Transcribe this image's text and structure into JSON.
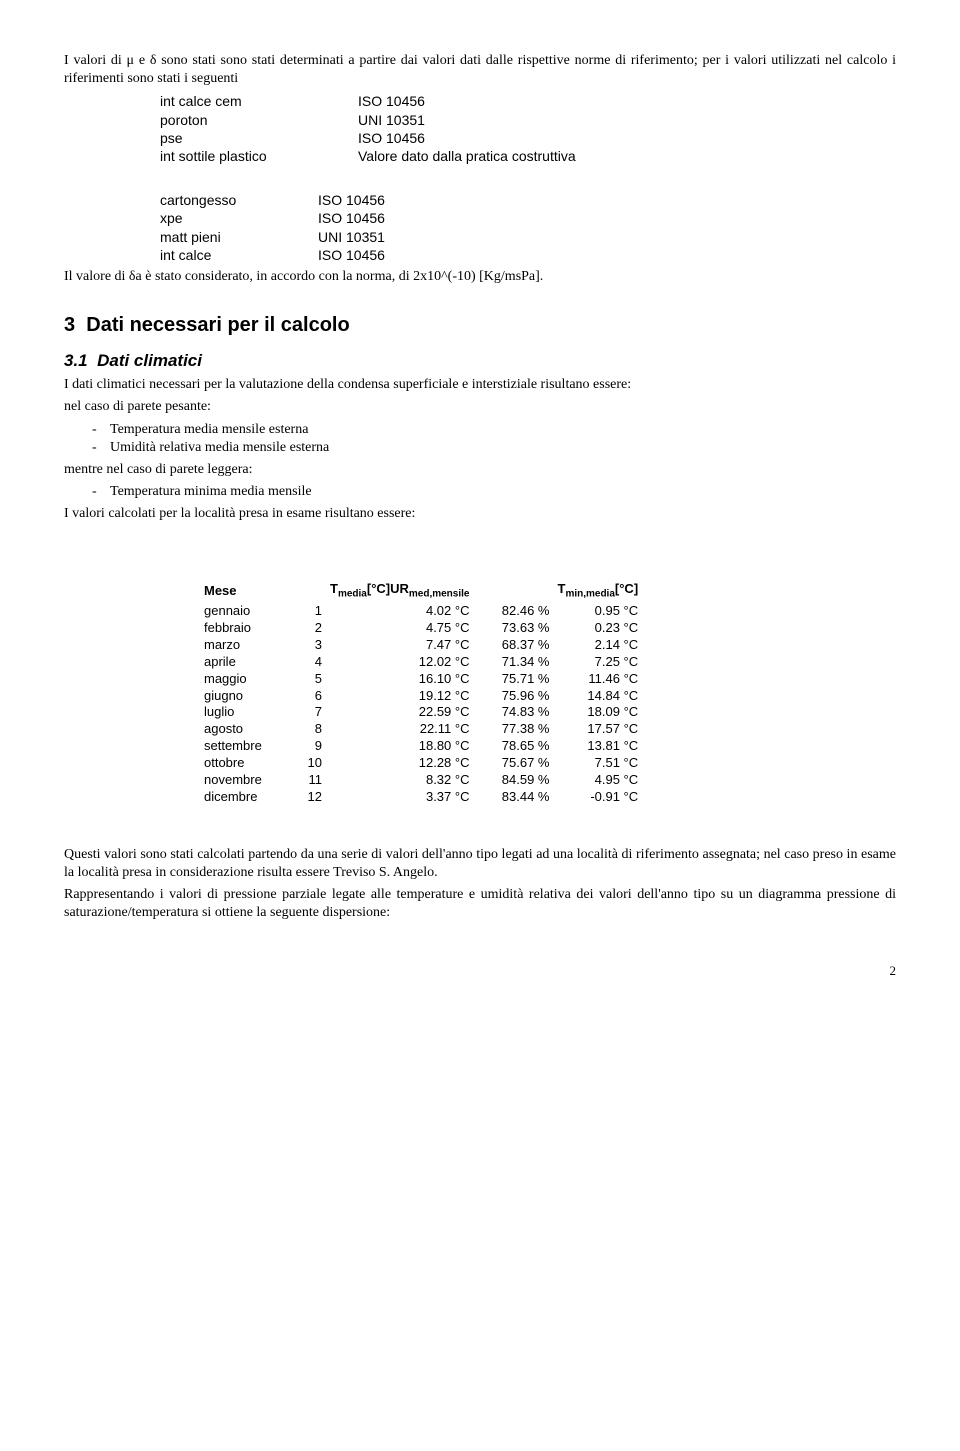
{
  "colors": {
    "text": "#000000",
    "bg": "#ffffff"
  },
  "intro": {
    "p1": "I valori di μ e δ sono stati sono stati determinati a partire dai valori dati dalle rispettive norme di riferimento; per i valori utilizzati nel calcolo i riferimenti sono stati i seguenti"
  },
  "materials1": [
    {
      "name": "int calce cem",
      "ref": "ISO 10456"
    },
    {
      "name": "poroton",
      "ref": "UNI 10351"
    },
    {
      "name": "pse",
      "ref": "ISO 10456"
    },
    {
      "name": "int sottile plastico",
      "ref": "Valore dato dalla pratica costruttiva"
    }
  ],
  "materials2": [
    {
      "name": "cartongesso",
      "ref": "ISO 10456"
    },
    {
      "name": "xpe",
      "ref": "ISO 10456"
    },
    {
      "name": "matt pieni",
      "ref": "UNI 10351"
    },
    {
      "name": "int calce",
      "ref": "ISO 10456"
    }
  ],
  "delta_note": "Il valore di δa è stato considerato, in accordo con la norma, di 2x10^(-10) [Kg/msPa].",
  "section3": {
    "num": "3",
    "title": "Dati necessari per il calcolo"
  },
  "section3_1": {
    "num": "3.1",
    "title": "Dati climatici",
    "p1": "I dati climatici necessari per la valutazione della condensa superficiale e interstiziale risultano essere:",
    "line_pesante": "nel caso di parete pesante:",
    "bul_pesante": [
      "Temperatura media mensile esterna",
      "Umidità relativa media mensile esterna"
    ],
    "line_leggera": "mentre nel caso di parete leggera:",
    "bul_leggera": [
      "Temperatura minima media mensile"
    ],
    "p2": "I valori calcolati per la località presa in esame risultano essere:"
  },
  "clim_table": {
    "headers": {
      "mese": "Mese",
      "tmedia_pre": "T",
      "tmedia_sub": "media",
      "tmedia_unit": "[°C]",
      "ur_pre": "UR",
      "ur_sub": "med,mensile",
      "tmin_pre": "T",
      "tmin_sub": "min,media",
      "tmin_unit": "[°C]"
    },
    "rows": [
      {
        "mese": "gennaio",
        "n": "1",
        "t": "4.02 °C",
        "u": "82.46 %",
        "tm": "0.95 °C"
      },
      {
        "mese": "febbraio",
        "n": "2",
        "t": "4.75 °C",
        "u": "73.63 %",
        "tm": "0.23 °C"
      },
      {
        "mese": "marzo",
        "n": "3",
        "t": "7.47 °C",
        "u": "68.37 %",
        "tm": "2.14 °C"
      },
      {
        "mese": "aprile",
        "n": "4",
        "t": "12.02 °C",
        "u": "71.34 %",
        "tm": "7.25 °C"
      },
      {
        "mese": "maggio",
        "n": "5",
        "t": "16.10 °C",
        "u": "75.71 %",
        "tm": "11.46 °C"
      },
      {
        "mese": "giugno",
        "n": "6",
        "t": "19.12 °C",
        "u": "75.96 %",
        "tm": "14.84 °C"
      },
      {
        "mese": "luglio",
        "n": "7",
        "t": "22.59 °C",
        "u": "74.83 %",
        "tm": "18.09 °C"
      },
      {
        "mese": "agosto",
        "n": "8",
        "t": "22.11 °C",
        "u": "77.38 %",
        "tm": "17.57 °C"
      },
      {
        "mese": "settembre",
        "n": "9",
        "t": "18.80 °C",
        "u": "78.65 %",
        "tm": "13.81 °C"
      },
      {
        "mese": "ottobre",
        "n": "10",
        "t": "12.28 °C",
        "u": "75.67 %",
        "tm": "7.51 °C"
      },
      {
        "mese": "novembre",
        "n": "11",
        "t": "8.32 °C",
        "u": "84.59 %",
        "tm": "4.95 °C"
      },
      {
        "mese": "dicembre",
        "n": "12",
        "t": "3.37 °C",
        "u": "83.44 %",
        "tm": "-0.91 °C"
      }
    ]
  },
  "closing": {
    "p1": "Questi valori sono stati calcolati partendo da una serie di valori dell'anno tipo legati ad una località di riferimento assegnata; nel caso preso in esame la località presa in considerazione risulta essere Treviso S. Angelo.",
    "p2": "Rappresentando i valori di pressione parziale legate alle temperature e umidità relativa dei valori dell'anno tipo su un  diagramma pressione di saturazione/temperatura si ottiene la seguente dispersione:"
  },
  "pagenum": "2"
}
